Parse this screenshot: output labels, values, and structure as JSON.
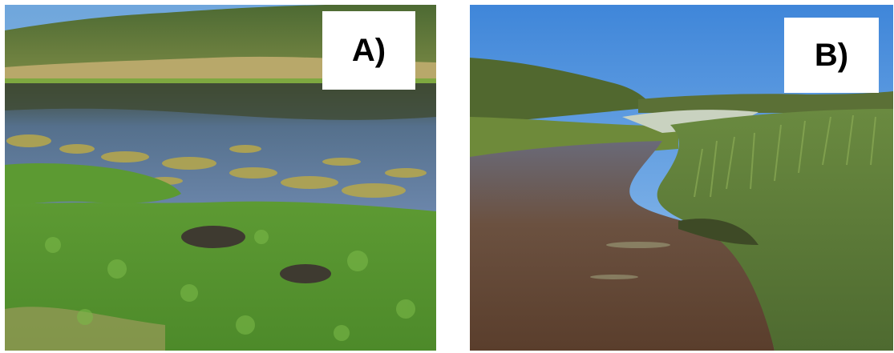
{
  "figure": {
    "panels": [
      {
        "label": "A)"
      },
      {
        "label": "B)"
      }
    ]
  }
}
